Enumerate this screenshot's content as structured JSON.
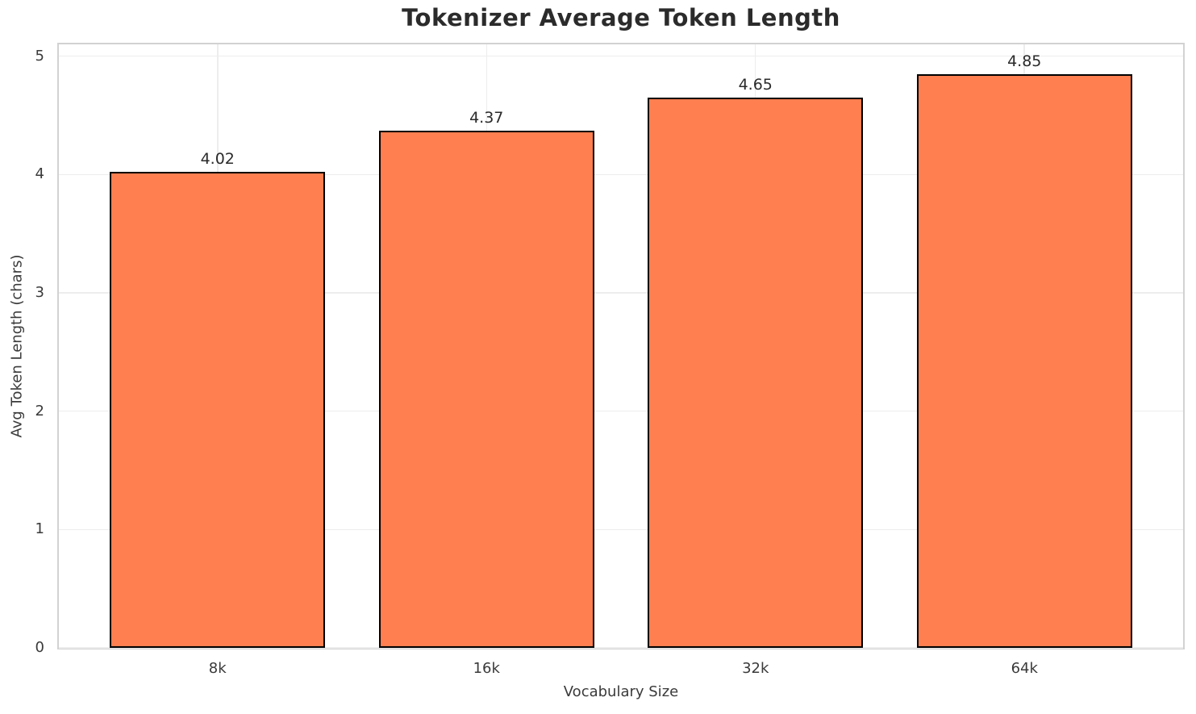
{
  "chart_data": {
    "type": "bar",
    "title": "Tokenizer Average Token Length",
    "xlabel": "Vocabulary Size",
    "ylabel": "Avg Token Length (chars)",
    "categories": [
      "8k",
      "16k",
      "32k",
      "64k"
    ],
    "values": [
      4.02,
      4.37,
      4.65,
      4.85
    ],
    "value_labels": [
      "4.02",
      "4.37",
      "4.65",
      "4.85"
    ],
    "ylim": [
      0,
      5.1
    ],
    "yticks": [
      0,
      1,
      2,
      3,
      4,
      5
    ],
    "grid": true,
    "legend_position": "none",
    "bar_fill": "#FF7F50",
    "bar_edge": "#000000",
    "bar_width_fraction": 0.8
  }
}
